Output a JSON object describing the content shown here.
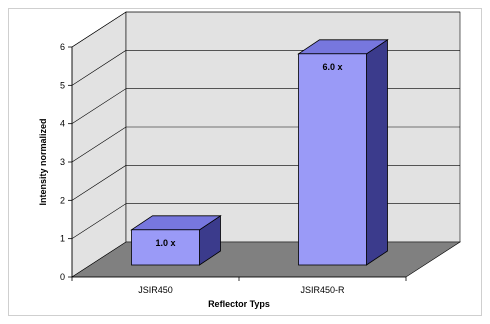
{
  "chart_data": {
    "type": "bar",
    "categories": [
      "JSIR450",
      "JSIR450-R"
    ],
    "values": [
      1.0,
      6.0
    ],
    "data_labels": [
      "1.0 x",
      "6.0 x"
    ],
    "xlabel": "Reflector Typs",
    "ylabel": "Intensity normalized",
    "ylim": [
      0,
      6
    ],
    "yticks": [
      "0",
      "1",
      "2",
      "3",
      "4",
      "5",
      "6"
    ],
    "grid": true,
    "style": "3d",
    "colors": {
      "bar_front": "#9a9af7",
      "bar_top": "#7777de",
      "bar_side": "#3b3b8c",
      "floor": "#808080",
      "wall": "#e2e2e2",
      "outline": "#000000"
    }
  }
}
